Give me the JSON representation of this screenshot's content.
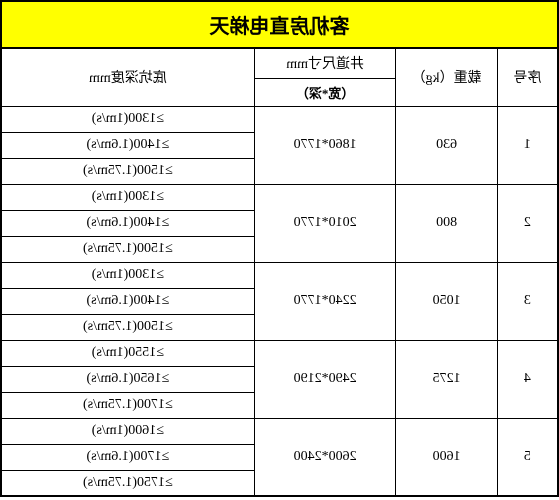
{
  "title": "客机房直电梯天",
  "headers": {
    "seq": "序号",
    "load": "载重（kg）",
    "shaft_main": "井道尺寸mm",
    "shaft_sub": "（宽*深）",
    "pit": "底坑深度mm"
  },
  "rows": [
    {
      "seq": "1",
      "load": "630",
      "shaft": "1860*1770",
      "pits": [
        "≥1300(1m/s)",
        "≥1400(1.6m/s)",
        "≥1500(1.75m/s)"
      ]
    },
    {
      "seq": "2",
      "load": "800",
      "shaft": "2010*1770",
      "pits": [
        "≥1300(1m/s)",
        "≥1400(1.6m/s)",
        "≥1500(1.75m/s)"
      ]
    },
    {
      "seq": "3",
      "load": "1050",
      "shaft": "2240*1770",
      "pits": [
        "≥1300(1m/s)",
        "≥1400(1.6m/s)",
        "≥1500(1.75m/s)"
      ]
    },
    {
      "seq": "4",
      "load": "1275",
      "shaft": "2490*2190",
      "pits": [
        "≥1550(1m/s)",
        "≥1650(1.6m/s)",
        "≥1700(1.75m/s)"
      ]
    },
    {
      "seq": "5",
      "load": "1600",
      "shaft": "2600*2400",
      "pits": [
        "≥1600(1m/s)",
        "≥1700(1.6m/s)",
        "≥1750(1.75m/s)"
      ]
    }
  ],
  "colors": {
    "title_bg": "#ffff00",
    "border": "#000000",
    "background": "#ffffff"
  }
}
